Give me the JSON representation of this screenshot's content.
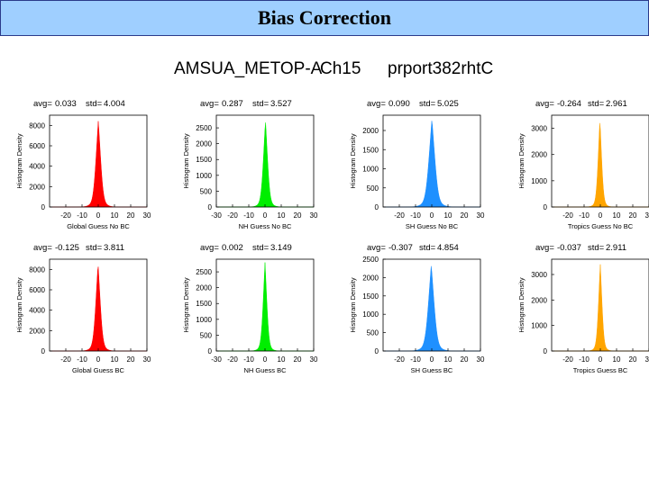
{
  "slide": {
    "title": "Bias Correction"
  },
  "figure": {
    "instrument": "AMSUA_METOP-A",
    "channel": "Ch15",
    "experiment": "prport382rhtC"
  },
  "chart_data": [
    {
      "type": "histogram",
      "row": 0,
      "col": 0,
      "xlabel": "Global Guess  No BC",
      "ylabel": "Histogram Density",
      "avg_label": "avg=",
      "avg": "0.033",
      "std_label": "std=",
      "std": "4.004",
      "color": "#ff0000",
      "xlim": [
        -30,
        30
      ],
      "xticks": [
        -20,
        -10,
        0,
        10,
        20,
        30
      ],
      "ylim": [
        0,
        9000
      ],
      "yticks": [
        0,
        2000,
        4000,
        6000,
        8000
      ],
      "peak": 8500
    },
    {
      "type": "histogram",
      "row": 0,
      "col": 1,
      "xlabel": "NH Guess  No BC",
      "ylabel": "Histogram Density",
      "avg_label": "avg=",
      "avg": "0.287",
      "std_label": "std=",
      "std": "3.527",
      "color": "#00ee00",
      "xlim": [
        -30,
        30
      ],
      "xticks": [
        -30,
        -20,
        -10,
        0,
        10,
        20,
        30
      ],
      "ylim": [
        0,
        2900
      ],
      "yticks": [
        0,
        500,
        1000,
        1500,
        2000,
        2500
      ],
      "peak": 2750
    },
    {
      "type": "histogram",
      "row": 0,
      "col": 2,
      "xlabel": "SH Guess  No BC",
      "ylabel": "Histogram Density",
      "avg_label": "avg=",
      "avg": "0.090",
      "std_label": "std=",
      "std": "5.025",
      "color": "#1e90ff",
      "xlim": [
        -30,
        30
      ],
      "xticks": [
        -20,
        -10,
        0,
        10,
        20,
        30
      ],
      "ylim": [
        0,
        2400
      ],
      "yticks": [
        0,
        500,
        1000,
        1500,
        2000
      ],
      "peak": 2300
    },
    {
      "type": "histogram",
      "row": 0,
      "col": 3,
      "xlabel": "Tropics Guess  No BC",
      "ylabel": "Histogram Density",
      "avg_label": "avg=",
      "avg": "-0.264",
      "std_label": "std=",
      "std": "2.961",
      "color": "#ffa500",
      "xlim": [
        -30,
        30
      ],
      "xticks": [
        -20,
        -10,
        0,
        10,
        20,
        30
      ],
      "ylim": [
        0,
        3500
      ],
      "yticks": [
        0,
        1000,
        2000,
        3000
      ],
      "peak": 3350
    },
    {
      "type": "histogram",
      "row": 1,
      "col": 0,
      "xlabel": "Global Guess BC",
      "ylabel": "Histogram Density",
      "avg_label": "avg=",
      "avg": "-0.125",
      "std_label": "std=",
      "std": "3.811",
      "color": "#ff0000",
      "xlim": [
        -30,
        30
      ],
      "xticks": [
        -20,
        -10,
        0,
        10,
        20,
        30
      ],
      "ylim": [
        0,
        9000
      ],
      "yticks": [
        0,
        2000,
        4000,
        6000,
        8000
      ],
      "peak": 8600
    },
    {
      "type": "histogram",
      "row": 1,
      "col": 1,
      "xlabel": "NH Guess BC",
      "ylabel": "Histogram Density",
      "avg_label": "avg=",
      "avg": "0.002",
      "std_label": "std=",
      "std": "3.149",
      "color": "#00ee00",
      "xlim": [
        -30,
        30
      ],
      "xticks": [
        -30,
        -20,
        -10,
        0,
        10,
        20,
        30
      ],
      "ylim": [
        0,
        2900
      ],
      "yticks": [
        0,
        500,
        1000,
        1500,
        2000,
        2500
      ],
      "peak": 2800
    },
    {
      "type": "histogram",
      "row": 1,
      "col": 2,
      "xlabel": "SH Guess BC",
      "ylabel": "Histogram Density",
      "avg_label": "avg=",
      "avg": "-0.307",
      "std_label": "std=",
      "std": "4.854",
      "color": "#1e90ff",
      "xlim": [
        -30,
        30
      ],
      "xticks": [
        -20,
        -10,
        0,
        10,
        20,
        30
      ],
      "ylim": [
        0,
        2500
      ],
      "yticks": [
        0,
        500,
        1000,
        1500,
        2000,
        2500
      ],
      "peak": 2350
    },
    {
      "type": "histogram",
      "row": 1,
      "col": 3,
      "xlabel": "Tropics Guess BC",
      "ylabel": "Histogram Density",
      "avg_label": "avg=",
      "avg": "-0.037",
      "std_label": "std=",
      "std": "2.911",
      "color": "#ffa500",
      "xlim": [
        -30,
        30
      ],
      "xticks": [
        -20,
        -10,
        0,
        10,
        20,
        30
      ],
      "ylim": [
        0,
        3600
      ],
      "yticks": [
        0,
        1000,
        2000,
        3000
      ],
      "peak": 3450
    }
  ]
}
